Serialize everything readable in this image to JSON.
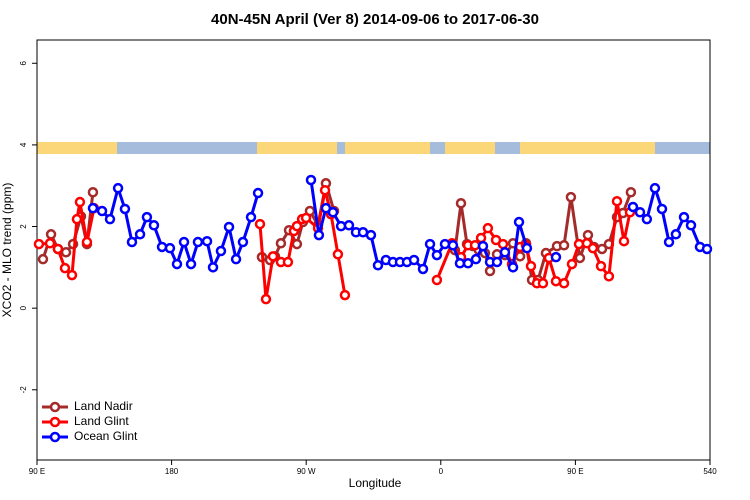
{
  "chart_data": {
    "type": "line",
    "title": "40N-45N April (Ver 8)   2014-09-06 to 2017-06-30",
    "xlabel": "Longitude",
    "ylabel": "XCO2 - MLO trend (ppm)",
    "xlim": [
      90,
      540
    ],
    "ylim": [
      -3.72,
      6.57
    ],
    "xticks": [
      {
        "value": 90,
        "label": "90 E"
      },
      180,
      {
        "value": 270,
        "label": "90 W"
      },
      {
        "value": 360,
        "label": "0"
      },
      {
        "value": 450,
        "label": "90 E"
      },
      540
    ],
    "yticks": [
      -2,
      0,
      2,
      4,
      6
    ],
    "legend": "bottom left",
    "series": [
      {
        "name": "Land Nadir",
        "color": "#a52a2a",
        "x": [
          94.0,
          99.4,
          104.0,
          109.4,
          114.1,
          119.4,
          123.4,
          127.4,
          190,
          240.4,
          245.8,
          249.1,
          253.1,
          258.5,
          263.8,
          267.8,
          272.5,
          277.9,
          283.2,
          288.6,
          360,
          369.5,
          373.5,
          377.5,
          381.5,
          385.5,
          389.5,
          392.9,
          397.6,
          402.9,
          408.3,
          413.0,
          417.0,
          421.0,
          425.0,
          430.3,
          437.7,
          442.4,
          447.0,
          453.0,
          458.4,
          462.4,
          467.8,
          472.4,
          477.8,
          481.8,
          487.1
        ],
        "values": [
          1.2,
          1.81,
          1.45,
          1.37,
          1.57,
          2.25,
          1.57,
          2.84,
          null,
          1.25,
          1.18,
          1.27,
          1.59,
          1.91,
          1.57,
          2.11,
          2.38,
          2.03,
          3.06,
          2.38,
          null,
          1.42,
          2.57,
          1.57,
          1.52,
          1.42,
          1.35,
          0.91,
          1.32,
          1.3,
          1.59,
          1.27,
          1.59,
          0.69,
          0.69,
          1.35,
          1.52,
          1.54,
          2.72,
          1.23,
          1.79,
          1.5,
          1.45,
          1.57,
          2.23,
          2.33,
          2.84
        ]
      },
      {
        "name": "Land Glint",
        "color": "#ff0000",
        "x": [
          91.3,
          98.7,
          104.0,
          108.7,
          113.4,
          116.7,
          118.7,
          123.4,
          128.1,
          190,
          239.1,
          243.1,
          247.8,
          253.1,
          257.8,
          261.8,
          263.8,
          267.2,
          269.9,
          277.9,
          282.6,
          286.6,
          291.2,
          295.9,
          330,
          357.4,
          367.5,
          373.5,
          378.2,
          382.9,
          386.9,
          391.5,
          396.9,
          401.6,
          407.6,
          413.0,
          417.0,
          420.3,
          424.3,
          428.3,
          432.3,
          437.0,
          442.4,
          447.7,
          452.4,
          457.7,
          461.7,
          467.1,
          472.4,
          477.8,
          482.5,
          486.5
        ],
        "values": [
          1.57,
          1.59,
          1.45,
          0.98,
          0.81,
          2.18,
          2.6,
          1.62,
          2.45,
          null,
          2.06,
          0.22,
          1.27,
          1.13,
          1.13,
          1.89,
          2.01,
          2.18,
          2.21,
          1.96,
          2.89,
          2.3,
          1.32,
          0.32,
          null,
          0.69,
          1.59,
          1.25,
          1.54,
          1.54,
          1.72,
          1.96,
          1.67,
          1.57,
          1.08,
          1.5,
          1.54,
          1.03,
          0.61,
          0.61,
          1.23,
          0.66,
          0.61,
          1.08,
          1.57,
          1.59,
          1.47,
          1.03,
          0.78,
          2.62,
          1.64,
          2.35
        ]
      },
      {
        "name": "Ocean Glint",
        "color": "#0000ff",
        "x": [
          127.4,
          133.5,
          138.8,
          144.2,
          148.8,
          153.5,
          158.9,
          163.5,
          168.2,
          173.6,
          178.9,
          183.6,
          188.3,
          193.0,
          197.6,
          203.7,
          207.7,
          213.0,
          218.4,
          223.1,
          227.7,
          233.1,
          237.8,
          250,
          273.2,
          278.5,
          283.2,
          287.9,
          293.3,
          298.6,
          303.3,
          308.0,
          313.3,
          318.0,
          323.3,
          328.0,
          332.7,
          337.4,
          342.1,
          348.1,
          352.8,
          357.4,
          362.8,
          368.1,
          372.8,
          378.2,
          383.5,
          388.2,
          392.9,
          397.6,
          402.9,
          408.3,
          412.3,
          417.6,
          420,
          437.0,
          480,
          488.5,
          493.2,
          497.8,
          503.2,
          507.9,
          512.6,
          517.2,
          522.6,
          527.3,
          533.3,
          538.0
        ],
        "values": [
          2.45,
          2.38,
          2.18,
          2.94,
          2.43,
          1.62,
          1.81,
          2.23,
          2.03,
          1.5,
          1.47,
          1.08,
          1.62,
          1.08,
          1.62,
          1.64,
          1.0,
          1.4,
          1.99,
          1.2,
          1.62,
          2.23,
          2.82,
          null,
          3.14,
          1.79,
          2.45,
          2.35,
          2.01,
          2.03,
          1.86,
          1.86,
          1.79,
          1.05,
          1.18,
          1.13,
          1.13,
          1.13,
          1.18,
          0.96,
          1.57,
          1.3,
          1.57,
          1.54,
          1.1,
          1.1,
          1.2,
          1.52,
          1.13,
          1.13,
          1.37,
          1.0,
          2.11,
          1.47,
          null,
          1.25,
          null,
          2.48,
          2.35,
          2.18,
          2.94,
          2.43,
          1.62,
          1.81,
          2.23,
          2.03,
          1.5,
          1.45
        ]
      }
    ]
  }
}
